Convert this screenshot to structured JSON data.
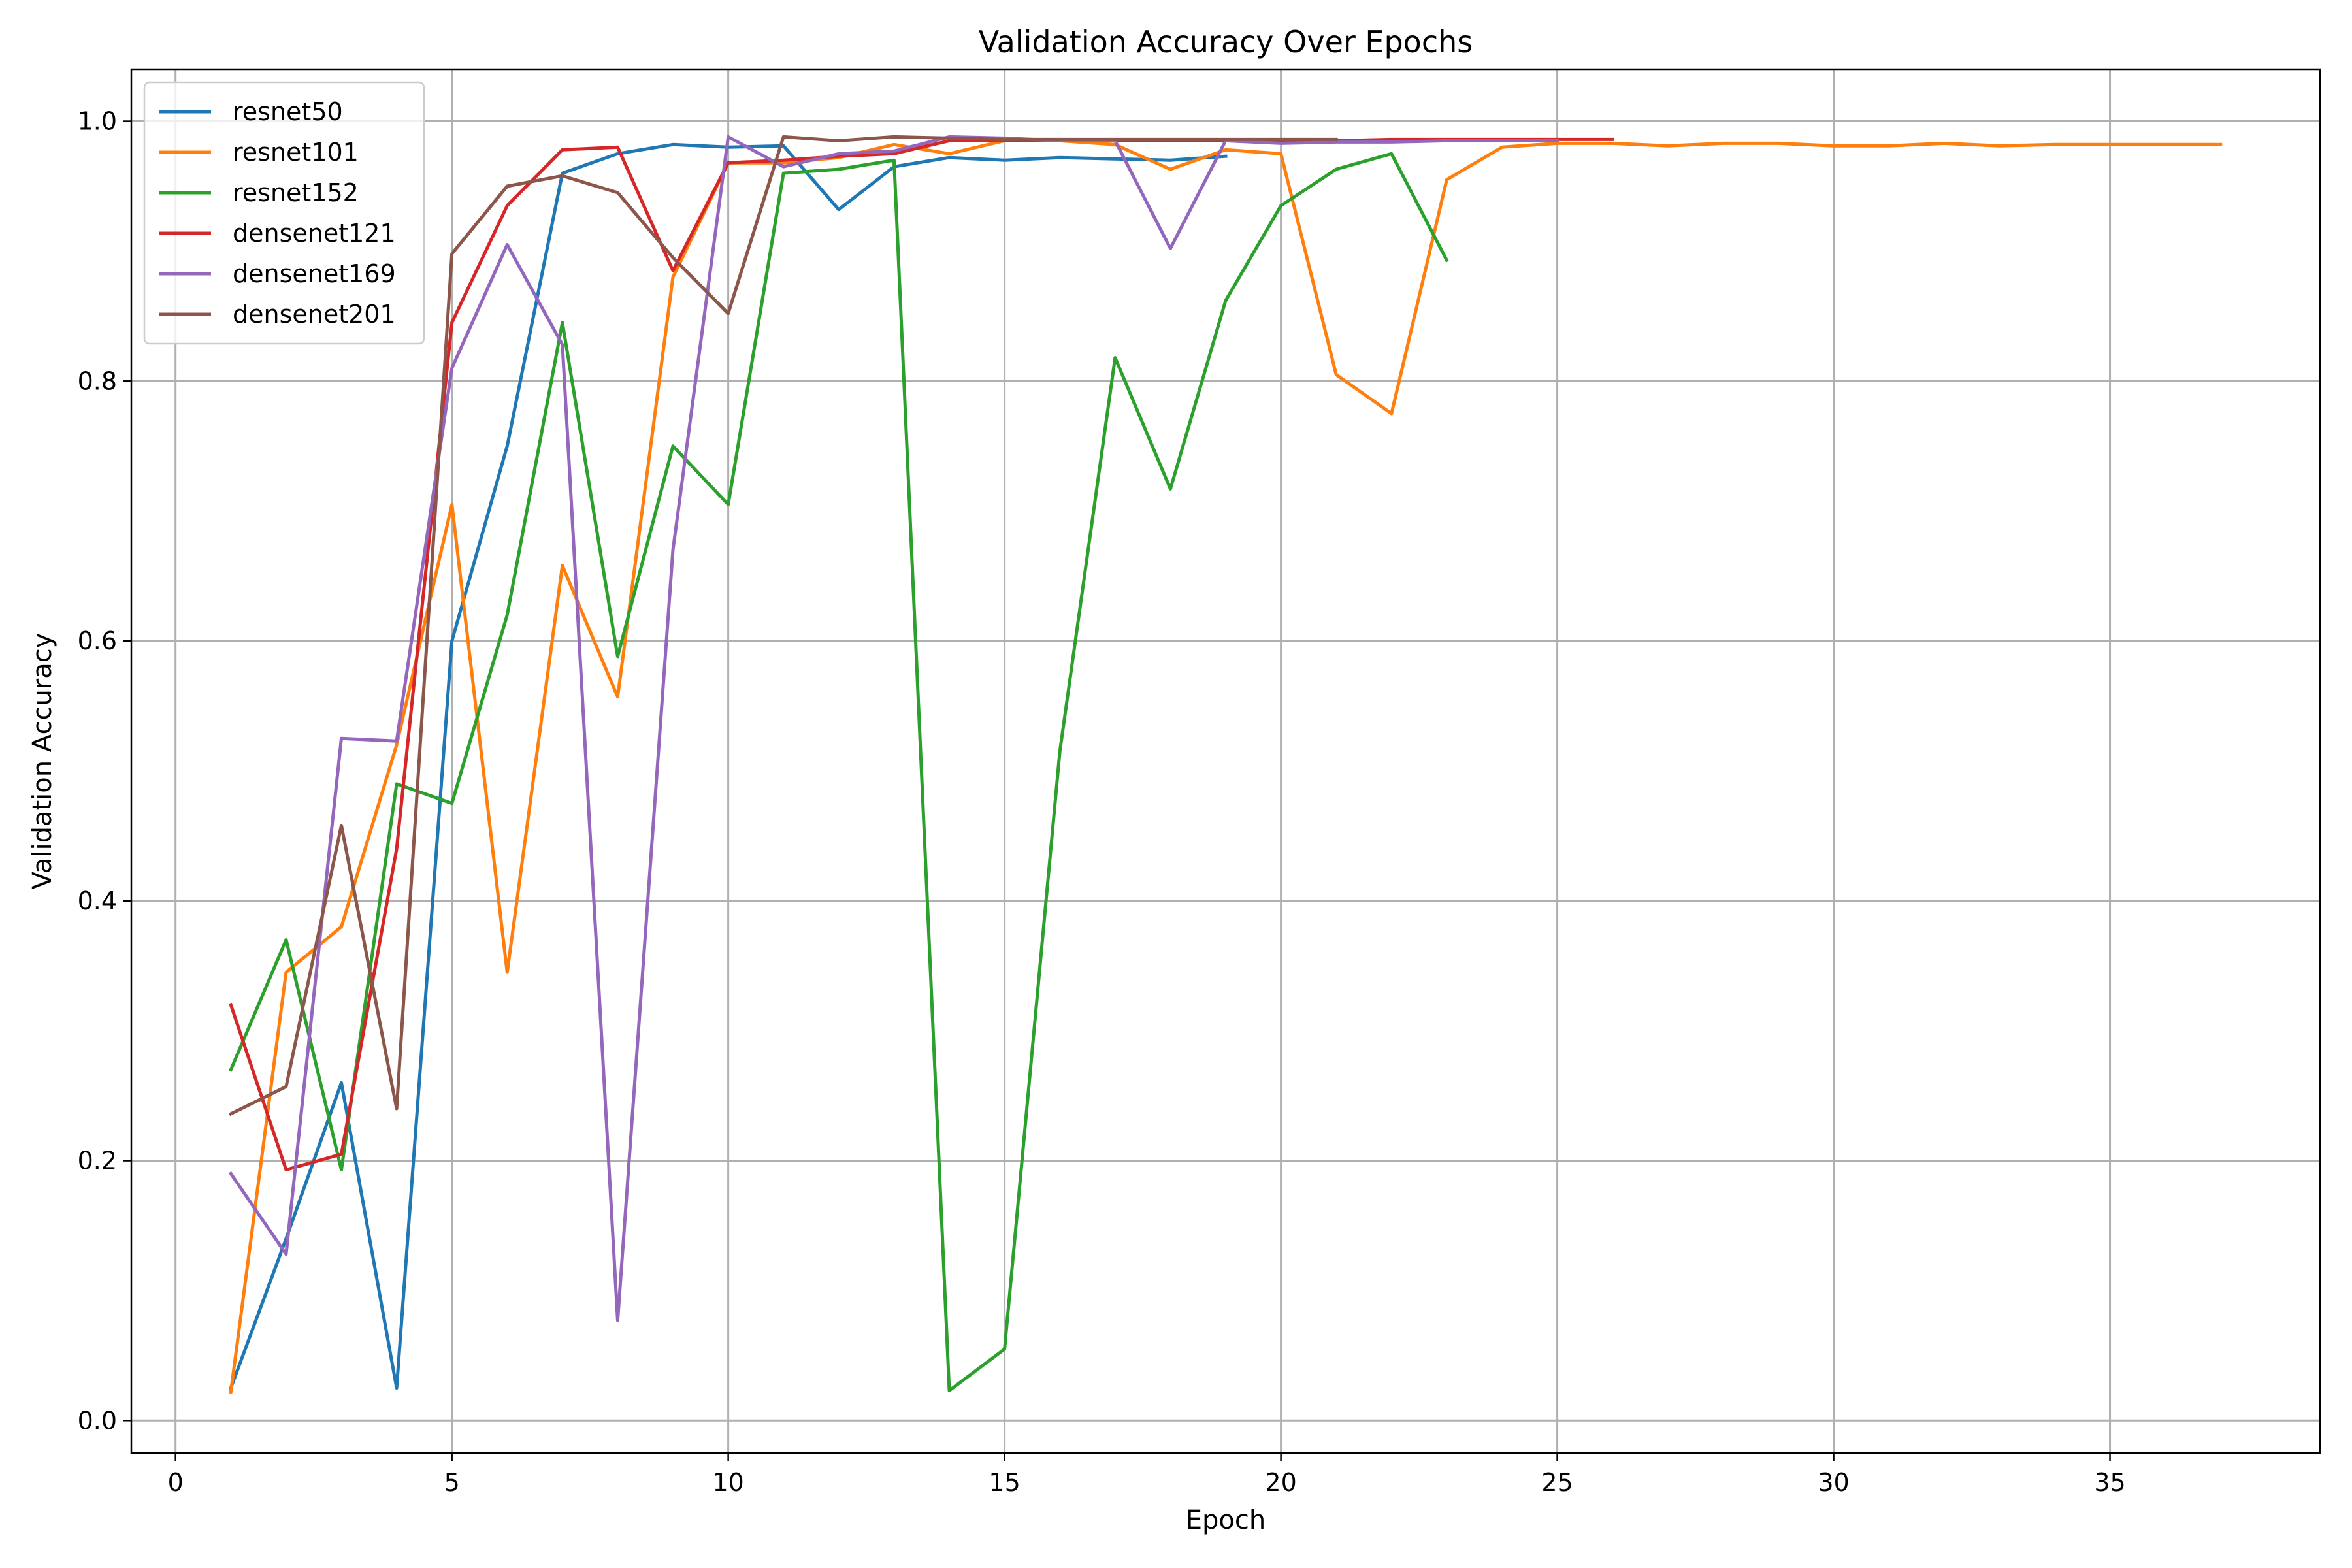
{
  "chart_data": {
    "type": "line",
    "title": "Validation Accuracy Over Epochs",
    "xlabel": "Epoch",
    "ylabel": "Validation Accuracy",
    "xlim": [
      -0.8,
      38.8
    ],
    "ylim": [
      -0.025,
      1.04
    ],
    "x_ticks": [
      0,
      5,
      10,
      15,
      20,
      25,
      30,
      35
    ],
    "x_tick_labels": [
      "0",
      "5",
      "10",
      "15",
      "20",
      "25",
      "30",
      "35"
    ],
    "y_ticks": [
      0.0,
      0.2,
      0.4,
      0.6,
      0.8,
      1.0
    ],
    "y_tick_labels": [
      "0.0",
      "0.2",
      "0.4",
      "0.6",
      "0.8",
      "1.0"
    ],
    "grid": true,
    "legend_position": "top-left",
    "series": [
      {
        "name": "resnet50",
        "color": "#1f77b4",
        "x": [
          1,
          2,
          3,
          4,
          5,
          6,
          7,
          8,
          9,
          10,
          11,
          12,
          13,
          14,
          15,
          16,
          17,
          18,
          19
        ],
        "y": [
          0.025,
          0.14,
          0.26,
          0.025,
          0.6,
          0.75,
          0.96,
          0.975,
          0.982,
          0.98,
          0.981,
          0.932,
          0.965,
          0.972,
          0.97,
          0.972,
          0.971,
          0.97,
          0.973
        ]
      },
      {
        "name": "resnet101",
        "color": "#ff7f0e",
        "x": [
          1,
          2,
          3,
          4,
          5,
          6,
          7,
          8,
          9,
          10,
          11,
          12,
          13,
          14,
          15,
          16,
          17,
          18,
          19,
          20,
          21,
          22,
          23,
          24,
          25,
          26,
          27,
          28,
          29,
          30,
          31,
          32,
          33,
          34,
          35,
          36,
          37
        ],
        "y": [
          0.022,
          0.345,
          0.38,
          0.52,
          0.705,
          0.345,
          0.658,
          0.557,
          0.88,
          0.968,
          0.968,
          0.972,
          0.982,
          0.975,
          0.985,
          0.985,
          0.982,
          0.963,
          0.978,
          0.975,
          0.805,
          0.775,
          0.955,
          0.98,
          0.983,
          0.983,
          0.981,
          0.983,
          0.983,
          0.981,
          0.981,
          0.983,
          0.981,
          0.982,
          0.982,
          0.982,
          0.982
        ]
      },
      {
        "name": "resnet152",
        "color": "#2ca02c",
        "x": [
          1,
          2,
          3,
          4,
          5,
          6,
          7,
          8,
          9,
          10,
          11,
          12,
          13,
          14,
          15,
          16,
          17,
          18,
          19,
          20,
          21,
          22,
          23
        ],
        "y": [
          0.27,
          0.37,
          0.193,
          0.49,
          0.475,
          0.62,
          0.845,
          0.588,
          0.75,
          0.705,
          0.96,
          0.963,
          0.97,
          0.023,
          0.055,
          0.515,
          0.818,
          0.717,
          0.862,
          0.935,
          0.963,
          0.975,
          0.893
        ]
      },
      {
        "name": "densenet121",
        "color": "#d62728",
        "x": [
          1,
          2,
          3,
          4,
          5,
          6,
          7,
          8,
          9,
          10,
          11,
          12,
          13,
          14,
          15,
          16,
          17,
          18,
          19,
          20,
          21,
          22,
          23,
          24,
          25,
          26
        ],
        "y": [
          0.32,
          0.193,
          0.205,
          0.44,
          0.845,
          0.935,
          0.978,
          0.98,
          0.885,
          0.968,
          0.97,
          0.973,
          0.975,
          0.985,
          0.985,
          0.985,
          0.985,
          0.985,
          0.985,
          0.985,
          0.985,
          0.986,
          0.986,
          0.986,
          0.986,
          0.986
        ]
      },
      {
        "name": "densenet169",
        "color": "#9467bd",
        "x": [
          1,
          2,
          3,
          4,
          5,
          6,
          7,
          8,
          9,
          10,
          11,
          12,
          13,
          14,
          15,
          16,
          17,
          18,
          19,
          20,
          21,
          22,
          23,
          24,
          25
        ],
        "y": [
          0.19,
          0.128,
          0.525,
          0.523,
          0.81,
          0.905,
          0.828,
          0.077,
          0.67,
          0.988,
          0.965,
          0.975,
          0.977,
          0.988,
          0.987,
          0.985,
          0.985,
          0.902,
          0.985,
          0.983,
          0.984,
          0.984,
          0.985,
          0.985,
          0.985
        ]
      },
      {
        "name": "densenet201",
        "color": "#8c564b",
        "x": [
          1,
          2,
          3,
          4,
          5,
          6,
          7,
          8,
          9,
          10,
          11,
          12,
          13,
          14,
          15,
          16,
          17,
          18,
          19,
          20,
          21
        ],
        "y": [
          0.236,
          0.257,
          0.458,
          0.24,
          0.898,
          0.95,
          0.958,
          0.945,
          0.895,
          0.852,
          0.988,
          0.985,
          0.988,
          0.987,
          0.986,
          0.986,
          0.986,
          0.986,
          0.986,
          0.986,
          0.986
        ]
      }
    ]
  }
}
